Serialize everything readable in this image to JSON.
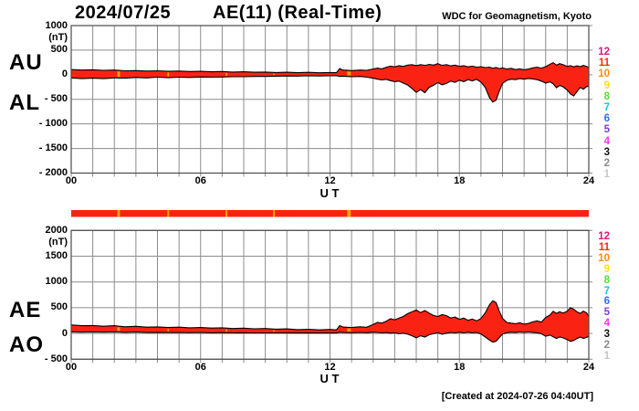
{
  "header": {
    "date": "2024/07/25",
    "title": "AE(11) (Real-Time)",
    "source": "WDC for Geomagnetism, Kyoto"
  },
  "footer": {
    "created_at": "[Created at 2024-07-26 04:40UT]"
  },
  "legend": {
    "meaning": "number-of-stations-color-scale",
    "items": [
      {
        "label": "12",
        "color": "#e8127a"
      },
      {
        "label": "11",
        "color": "#ff2a14"
      },
      {
        "label": "10",
        "color": "#ff8c0a"
      },
      {
        "label": "9",
        "color": "#ffdf0f"
      },
      {
        "label": "8",
        "color": "#59dd3c"
      },
      {
        "label": "7",
        "color": "#16c2dd"
      },
      {
        "label": "6",
        "color": "#2f6bff"
      },
      {
        "label": "5",
        "color": "#7d3fc9"
      },
      {
        "label": "4",
        "color": "#f733f7"
      },
      {
        "label": "3",
        "color": "#141414"
      },
      {
        "label": "2",
        "color": "#8a8a8a"
      },
      {
        "label": "1",
        "color": "#c6c6c6"
      }
    ]
  },
  "colors": {
    "band_fill": "#fa2313",
    "band_outline": "#000000",
    "gap_mark": "#ffa400",
    "grid": "#8c8c8c",
    "frame": "#4a4a4a",
    "bar_red": "#fa2313"
  },
  "data_gaps": [
    {
      "hour": 2.2,
      "width": 0.12
    },
    {
      "hour": 4.5,
      "width": 0.07
    },
    {
      "hour": 7.2,
      "width": 0.07
    },
    {
      "hour": 9.4,
      "width": 0.07
    },
    {
      "hour": 12.88,
      "width": 0.16
    }
  ],
  "chart_data": [
    {
      "type": "area",
      "panel": "top",
      "series_labels": [
        "AU",
        "AL"
      ],
      "unit": "(nT)",
      "ylim": [
        -2000,
        1000
      ],
      "yticks": [
        {
          "v": 1000,
          "label": "1000"
        },
        {
          "v": 500,
          "label": "500"
        },
        {
          "v": 0,
          "label": "0"
        },
        {
          "v": -500,
          "label": "- 500"
        },
        {
          "v": -1000,
          "label": "- 1000"
        },
        {
          "v": -1500,
          "label": "- 1500"
        },
        {
          "v": -2000,
          "label": "- 2000"
        }
      ],
      "xlabel": "U T",
      "xlim": [
        0,
        24
      ],
      "grid_step_hours": 1,
      "xticks": [
        {
          "h": 0,
          "label": "00"
        },
        {
          "h": 6,
          "label": "06"
        },
        {
          "h": 12,
          "label": "12"
        },
        {
          "h": 18,
          "label": "18"
        },
        {
          "h": 24,
          "label": "24"
        }
      ],
      "points_format": [
        "hour_ut",
        "AU_nT",
        "AL_nT"
      ],
      "points": [
        [
          0,
          105,
          -65
        ],
        [
          0.5,
          95,
          -80
        ],
        [
          1,
          100,
          -70
        ],
        [
          1.5,
          90,
          -80
        ],
        [
          2,
          95,
          -65
        ],
        [
          2.5,
          80,
          -70
        ],
        [
          3,
          85,
          -55
        ],
        [
          3.5,
          75,
          -65
        ],
        [
          4,
          80,
          -50
        ],
        [
          4.5,
          70,
          -60
        ],
        [
          5,
          75,
          -50
        ],
        [
          5.5,
          65,
          -55
        ],
        [
          6,
          70,
          -45
        ],
        [
          6.5,
          60,
          -50
        ],
        [
          7,
          65,
          -45
        ],
        [
          7.5,
          55,
          -40
        ],
        [
          8,
          60,
          -40
        ],
        [
          8.5,
          50,
          -35
        ],
        [
          9,
          55,
          -35
        ],
        [
          9.5,
          45,
          -30
        ],
        [
          10,
          50,
          -25
        ],
        [
          10.5,
          42,
          -28
        ],
        [
          11,
          48,
          -22
        ],
        [
          11.5,
          40,
          -25
        ],
        [
          12,
          46,
          -22
        ],
        [
          12.3,
          42,
          -20
        ],
        [
          12.45,
          125,
          -35
        ],
        [
          12.6,
          95,
          -30
        ],
        [
          13,
          85,
          -40
        ],
        [
          13.4,
          95,
          -35
        ],
        [
          13.7,
          90,
          -50
        ],
        [
          14,
          115,
          -70
        ],
        [
          14.2,
          135,
          -90
        ],
        [
          14.4,
          120,
          -105
        ],
        [
          14.6,
          150,
          -95
        ],
        [
          14.8,
          175,
          -120
        ],
        [
          15,
          160,
          -140
        ],
        [
          15.2,
          185,
          -130
        ],
        [
          15.4,
          170,
          -170
        ],
        [
          15.6,
          195,
          -210
        ],
        [
          15.8,
          205,
          -280
        ],
        [
          16,
          185,
          -360
        ],
        [
          16.2,
          205,
          -300
        ],
        [
          16.4,
          190,
          -365
        ],
        [
          16.6,
          210,
          -255
        ],
        [
          16.8,
          195,
          -215
        ],
        [
          17,
          225,
          -160
        ],
        [
          17.2,
          190,
          -205
        ],
        [
          17.4,
          205,
          -175
        ],
        [
          17.6,
          180,
          -130
        ],
        [
          17.8,
          195,
          -155
        ],
        [
          18,
          170,
          -110
        ],
        [
          18.2,
          185,
          -140
        ],
        [
          18.4,
          160,
          -100
        ],
        [
          18.6,
          175,
          -125
        ],
        [
          18.8,
          155,
          -95
        ],
        [
          19,
          165,
          -150
        ],
        [
          19.2,
          145,
          -260
        ],
        [
          19.4,
          155,
          -470
        ],
        [
          19.55,
          130,
          -555
        ],
        [
          19.7,
          150,
          -520
        ],
        [
          19.85,
          125,
          -330
        ],
        [
          20,
          140,
          -175
        ],
        [
          20.2,
          115,
          -115
        ],
        [
          20.4,
          130,
          -90
        ],
        [
          20.6,
          105,
          -100
        ],
        [
          20.8,
          120,
          -80
        ],
        [
          21,
          100,
          -90
        ],
        [
          21.2,
          115,
          -75
        ],
        [
          21.4,
          140,
          -85
        ],
        [
          21.6,
          155,
          -100
        ],
        [
          21.8,
          135,
          -130
        ],
        [
          22,
          165,
          -170
        ],
        [
          22.2,
          215,
          -145
        ],
        [
          22.35,
          245,
          -185
        ],
        [
          22.5,
          195,
          -265
        ],
        [
          22.65,
          225,
          -215
        ],
        [
          22.8,
          205,
          -245
        ],
        [
          23,
          170,
          -310
        ],
        [
          23.15,
          185,
          -390
        ],
        [
          23.3,
          160,
          -430
        ],
        [
          23.45,
          180,
          -345
        ],
        [
          23.6,
          165,
          -260
        ],
        [
          23.75,
          190,
          -295
        ],
        [
          23.9,
          170,
          -240
        ],
        [
          24,
          145,
          -235
        ]
      ]
    },
    {
      "type": "area",
      "panel": "bottom",
      "series_labels": [
        "AE",
        "AO"
      ],
      "unit": "(nT)",
      "ylim": [
        -500,
        2000
      ],
      "yticks": [
        {
          "v": 2000,
          "label": "2000"
        },
        {
          "v": 1500,
          "label": "1500"
        },
        {
          "v": 1000,
          "label": "1000"
        },
        {
          "v": 500,
          "label": "500"
        },
        {
          "v": 0,
          "label": "0"
        },
        {
          "v": -500,
          "label": "- 500"
        }
      ],
      "xlabel": "U T",
      "xlim": [
        0,
        24
      ],
      "grid_step_hours": 1,
      "xticks": [
        {
          "h": 0,
          "label": "00"
        },
        {
          "h": 6,
          "label": "06"
        },
        {
          "h": 12,
          "label": "12"
        },
        {
          "h": 18,
          "label": "18"
        },
        {
          "h": 24,
          "label": "24"
        }
      ],
      "points_format": [
        "hour_ut",
        "AE_nT",
        "AO_nT"
      ],
      "points": [
        [
          0,
          165,
          30
        ],
        [
          0.5,
          150,
          25
        ],
        [
          1,
          155,
          30
        ],
        [
          1.5,
          140,
          25
        ],
        [
          2,
          150,
          30
        ],
        [
          2.5,
          130,
          22
        ],
        [
          3,
          138,
          26
        ],
        [
          3.5,
          122,
          18
        ],
        [
          4,
          128,
          22
        ],
        [
          4.5,
          115,
          18
        ],
        [
          5,
          122,
          20
        ],
        [
          5.5,
          110,
          16
        ],
        [
          6,
          115,
          20
        ],
        [
          6.5,
          105,
          12
        ],
        [
          7,
          110,
          16
        ],
        [
          7.5,
          96,
          12
        ],
        [
          8,
          102,
          14
        ],
        [
          8.5,
          90,
          10
        ],
        [
          9,
          96,
          12
        ],
        [
          9.5,
          84,
          10
        ],
        [
          10,
          88,
          12
        ],
        [
          10.5,
          74,
          8
        ],
        [
          11,
          80,
          12
        ],
        [
          11.5,
          70,
          8
        ],
        [
          12,
          78,
          10
        ],
        [
          12.3,
          70,
          8
        ],
        [
          12.45,
          150,
          25
        ],
        [
          12.6,
          125,
          18
        ],
        [
          13,
          115,
          15
        ],
        [
          13.4,
          130,
          20
        ],
        [
          13.7,
          120,
          15
        ],
        [
          14,
          175,
          25
        ],
        [
          14.2,
          215,
          20
        ],
        [
          14.4,
          200,
          10
        ],
        [
          14.6,
          235,
          18
        ],
        [
          14.8,
          285,
          5
        ],
        [
          15,
          265,
          15
        ],
        [
          15.2,
          300,
          -5
        ],
        [
          15.4,
          330,
          5
        ],
        [
          15.6,
          385,
          -15
        ],
        [
          15.8,
          420,
          -45
        ],
        [
          16,
          455,
          -85
        ],
        [
          16.2,
          405,
          -45
        ],
        [
          16.4,
          445,
          -70
        ],
        [
          16.6,
          395,
          -25
        ],
        [
          16.8,
          350,
          -5
        ],
        [
          17,
          330,
          15
        ],
        [
          17.2,
          365,
          -15
        ],
        [
          17.4,
          345,
          5
        ],
        [
          17.6,
          300,
          20
        ],
        [
          17.8,
          320,
          10
        ],
        [
          18,
          275,
          25
        ],
        [
          18.2,
          300,
          10
        ],
        [
          18.4,
          255,
          25
        ],
        [
          18.6,
          280,
          12
        ],
        [
          18.8,
          245,
          20
        ],
        [
          19,
          290,
          -10
        ],
        [
          19.2,
          400,
          -70
        ],
        [
          19.4,
          560,
          -130
        ],
        [
          19.55,
          635,
          -170
        ],
        [
          19.7,
          600,
          -150
        ],
        [
          19.85,
          430,
          -80
        ],
        [
          20,
          295,
          -10
        ],
        [
          20.2,
          215,
          15
        ],
        [
          20.4,
          200,
          25
        ],
        [
          20.6,
          190,
          18
        ],
        [
          20.8,
          205,
          28
        ],
        [
          21,
          180,
          20
        ],
        [
          21.2,
          195,
          28
        ],
        [
          21.4,
          225,
          20
        ],
        [
          21.6,
          245,
          12
        ],
        [
          21.8,
          220,
          -5
        ],
        [
          22,
          310,
          -55
        ],
        [
          22.2,
          360,
          -30
        ],
        [
          22.35,
          430,
          -65
        ],
        [
          22.5,
          390,
          -95
        ],
        [
          22.65,
          420,
          -70
        ],
        [
          22.8,
          395,
          -85
        ],
        [
          23,
          430,
          -120
        ],
        [
          23.15,
          500,
          -155
        ],
        [
          23.3,
          470,
          -135
        ],
        [
          23.45,
          420,
          -100
        ],
        [
          23.6,
          390,
          -70
        ],
        [
          23.75,
          435,
          -95
        ],
        [
          23.9,
          400,
          -75
        ],
        [
          24,
          330,
          -60
        ]
      ]
    }
  ]
}
